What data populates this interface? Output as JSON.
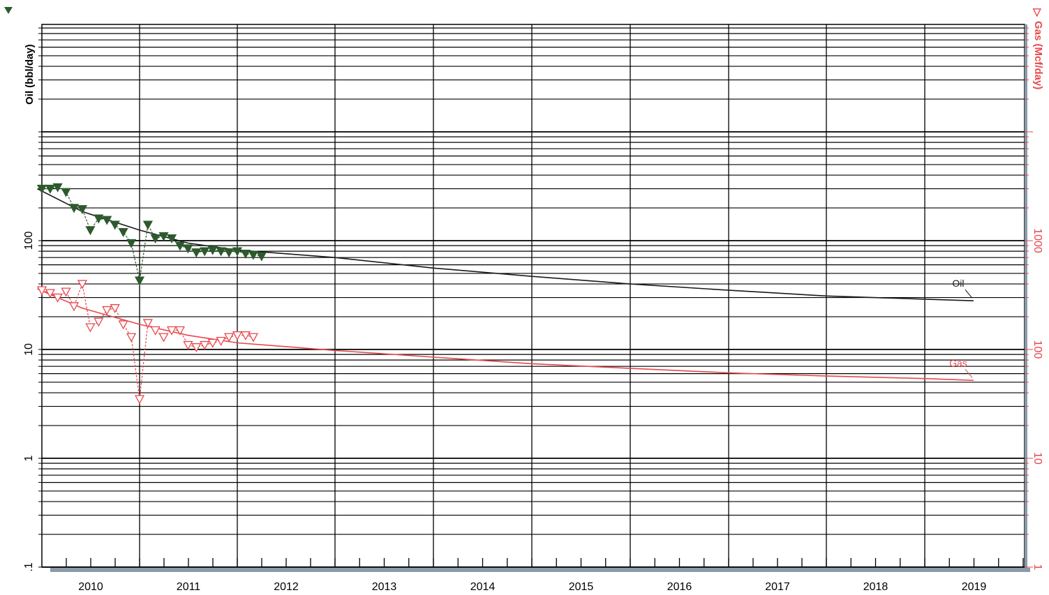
{
  "chart_data": {
    "type": "line",
    "title": "",
    "x_axis": {
      "type": "time",
      "range": [
        "2009-09-01",
        "2019-07-01"
      ],
      "tick_labels": [
        "2010",
        "2011",
        "2012",
        "2013",
        "2014",
        "2015",
        "2016",
        "2017",
        "2018",
        "2019"
      ]
    },
    "y_axis_left": {
      "label": "Oil (bbl/day)",
      "scale": "log",
      "range": [
        0.1,
        10000
      ],
      "tick_labels": [
        ".1",
        "1",
        "10",
        "100"
      ]
    },
    "y_axis_right": {
      "label": "Gas (Mcf/day)",
      "scale": "log",
      "range": [
        1,
        100000
      ],
      "tick_labels": [
        "1",
        "10",
        "100",
        "1000"
      ]
    },
    "grid": true,
    "series": [
      {
        "name": "Oil",
        "axis": "left",
        "color": "#2d5a2d",
        "marker": "filled-triangle-down",
        "points": [
          [
            "2010-01-01",
            300
          ],
          [
            "2010-02-01",
            300
          ],
          [
            "2010-03-01",
            310
          ],
          [
            "2010-04-01",
            280
          ],
          [
            "2010-05-01",
            200
          ],
          [
            "2010-06-01",
            195
          ],
          [
            "2010-07-01",
            125
          ],
          [
            "2010-08-01",
            160
          ],
          [
            "2010-09-01",
            155
          ],
          [
            "2010-10-01",
            140
          ],
          [
            "2010-11-01",
            120
          ],
          [
            "2010-12-01",
            95
          ],
          [
            "2011-01-01",
            43
          ],
          [
            "2011-02-01",
            140
          ],
          [
            "2011-03-01",
            105
          ],
          [
            "2011-04-01",
            110
          ],
          [
            "2011-05-01",
            105
          ],
          [
            "2011-06-01",
            90
          ],
          [
            "2011-07-01",
            85
          ],
          [
            "2011-08-01",
            78
          ],
          [
            "2011-09-01",
            80
          ],
          [
            "2011-10-01",
            82
          ],
          [
            "2011-11-01",
            80
          ],
          [
            "2011-12-01",
            78
          ],
          [
            "2012-01-01",
            80
          ],
          [
            "2012-02-01",
            76
          ],
          [
            "2012-03-01",
            74
          ],
          [
            "2012-04-01",
            72
          ]
        ]
      },
      {
        "name": "Gas",
        "axis": "right",
        "color": "#e8474d",
        "marker": "open-triangle-down",
        "points": [
          [
            "2010-01-01",
            350
          ],
          [
            "2010-02-01",
            330
          ],
          [
            "2010-03-01",
            300
          ],
          [
            "2010-04-01",
            340
          ],
          [
            "2010-05-01",
            250
          ],
          [
            "2010-06-01",
            400
          ],
          [
            "2010-07-01",
            160
          ],
          [
            "2010-08-01",
            180
          ],
          [
            "2010-09-01",
            230
          ],
          [
            "2010-10-01",
            240
          ],
          [
            "2010-11-01",
            170
          ],
          [
            "2010-12-01",
            130
          ],
          [
            "2011-01-01",
            35
          ],
          [
            "2011-02-01",
            175
          ],
          [
            "2011-03-01",
            150
          ],
          [
            "2011-04-01",
            130
          ],
          [
            "2011-05-01",
            150
          ],
          [
            "2011-06-01",
            150
          ],
          [
            "2011-07-01",
            110
          ],
          [
            "2011-08-01",
            105
          ],
          [
            "2011-09-01",
            110
          ],
          [
            "2011-10-01",
            115
          ],
          [
            "2011-11-01",
            120
          ],
          [
            "2011-12-01",
            130
          ],
          [
            "2012-01-01",
            135
          ],
          [
            "2012-02-01",
            135
          ],
          [
            "2012-03-01",
            130
          ]
        ]
      }
    ],
    "forecasts": [
      {
        "name": "Oil",
        "axis": "left",
        "color": "#1a1a1a",
        "label": "Oil",
        "points": [
          [
            "2009-12-15",
            300
          ],
          [
            "2010-06-01",
            185
          ],
          [
            "2011-01-01",
            125
          ],
          [
            "2011-07-01",
            95
          ],
          [
            "2012-01-01",
            82
          ],
          [
            "2013-01-01",
            70
          ],
          [
            "2014-01-01",
            56
          ],
          [
            "2015-01-01",
            47
          ],
          [
            "2016-01-01",
            40
          ],
          [
            "2017-01-01",
            35
          ],
          [
            "2018-01-01",
            31
          ],
          [
            "2019-01-01",
            29
          ],
          [
            "2019-07-01",
            28
          ]
        ]
      },
      {
        "name": "Gas",
        "axis": "right",
        "color": "#e8474d",
        "label": "Gas",
        "points": [
          [
            "2009-12-15",
            360
          ],
          [
            "2010-06-01",
            240
          ],
          [
            "2011-01-01",
            170
          ],
          [
            "2011-07-01",
            135
          ],
          [
            "2012-01-01",
            115
          ],
          [
            "2013-01-01",
            98
          ],
          [
            "2014-01-01",
            85
          ],
          [
            "2015-01-01",
            74
          ],
          [
            "2016-01-01",
            67
          ],
          [
            "2017-01-01",
            61
          ],
          [
            "2018-01-01",
            57
          ],
          [
            "2019-01-01",
            54
          ],
          [
            "2019-07-01",
            52
          ]
        ]
      }
    ]
  },
  "colors": {
    "oil_marker": "#2d5a2d",
    "oil_fit": "#1a1a1a",
    "gas": "#e8474d",
    "grid": "#000000",
    "axis_strip": "#8a9aa8"
  },
  "icons": {
    "oil_legend": "filled-triangle-down-icon",
    "gas_legend": "open-triangle-down-icon"
  },
  "labels": {
    "oil_axis_title": "Oil (bbl/day)",
    "gas_axis_title": "Gas (Mcf/day)",
    "gas_axis_glyph": "▽"
  }
}
